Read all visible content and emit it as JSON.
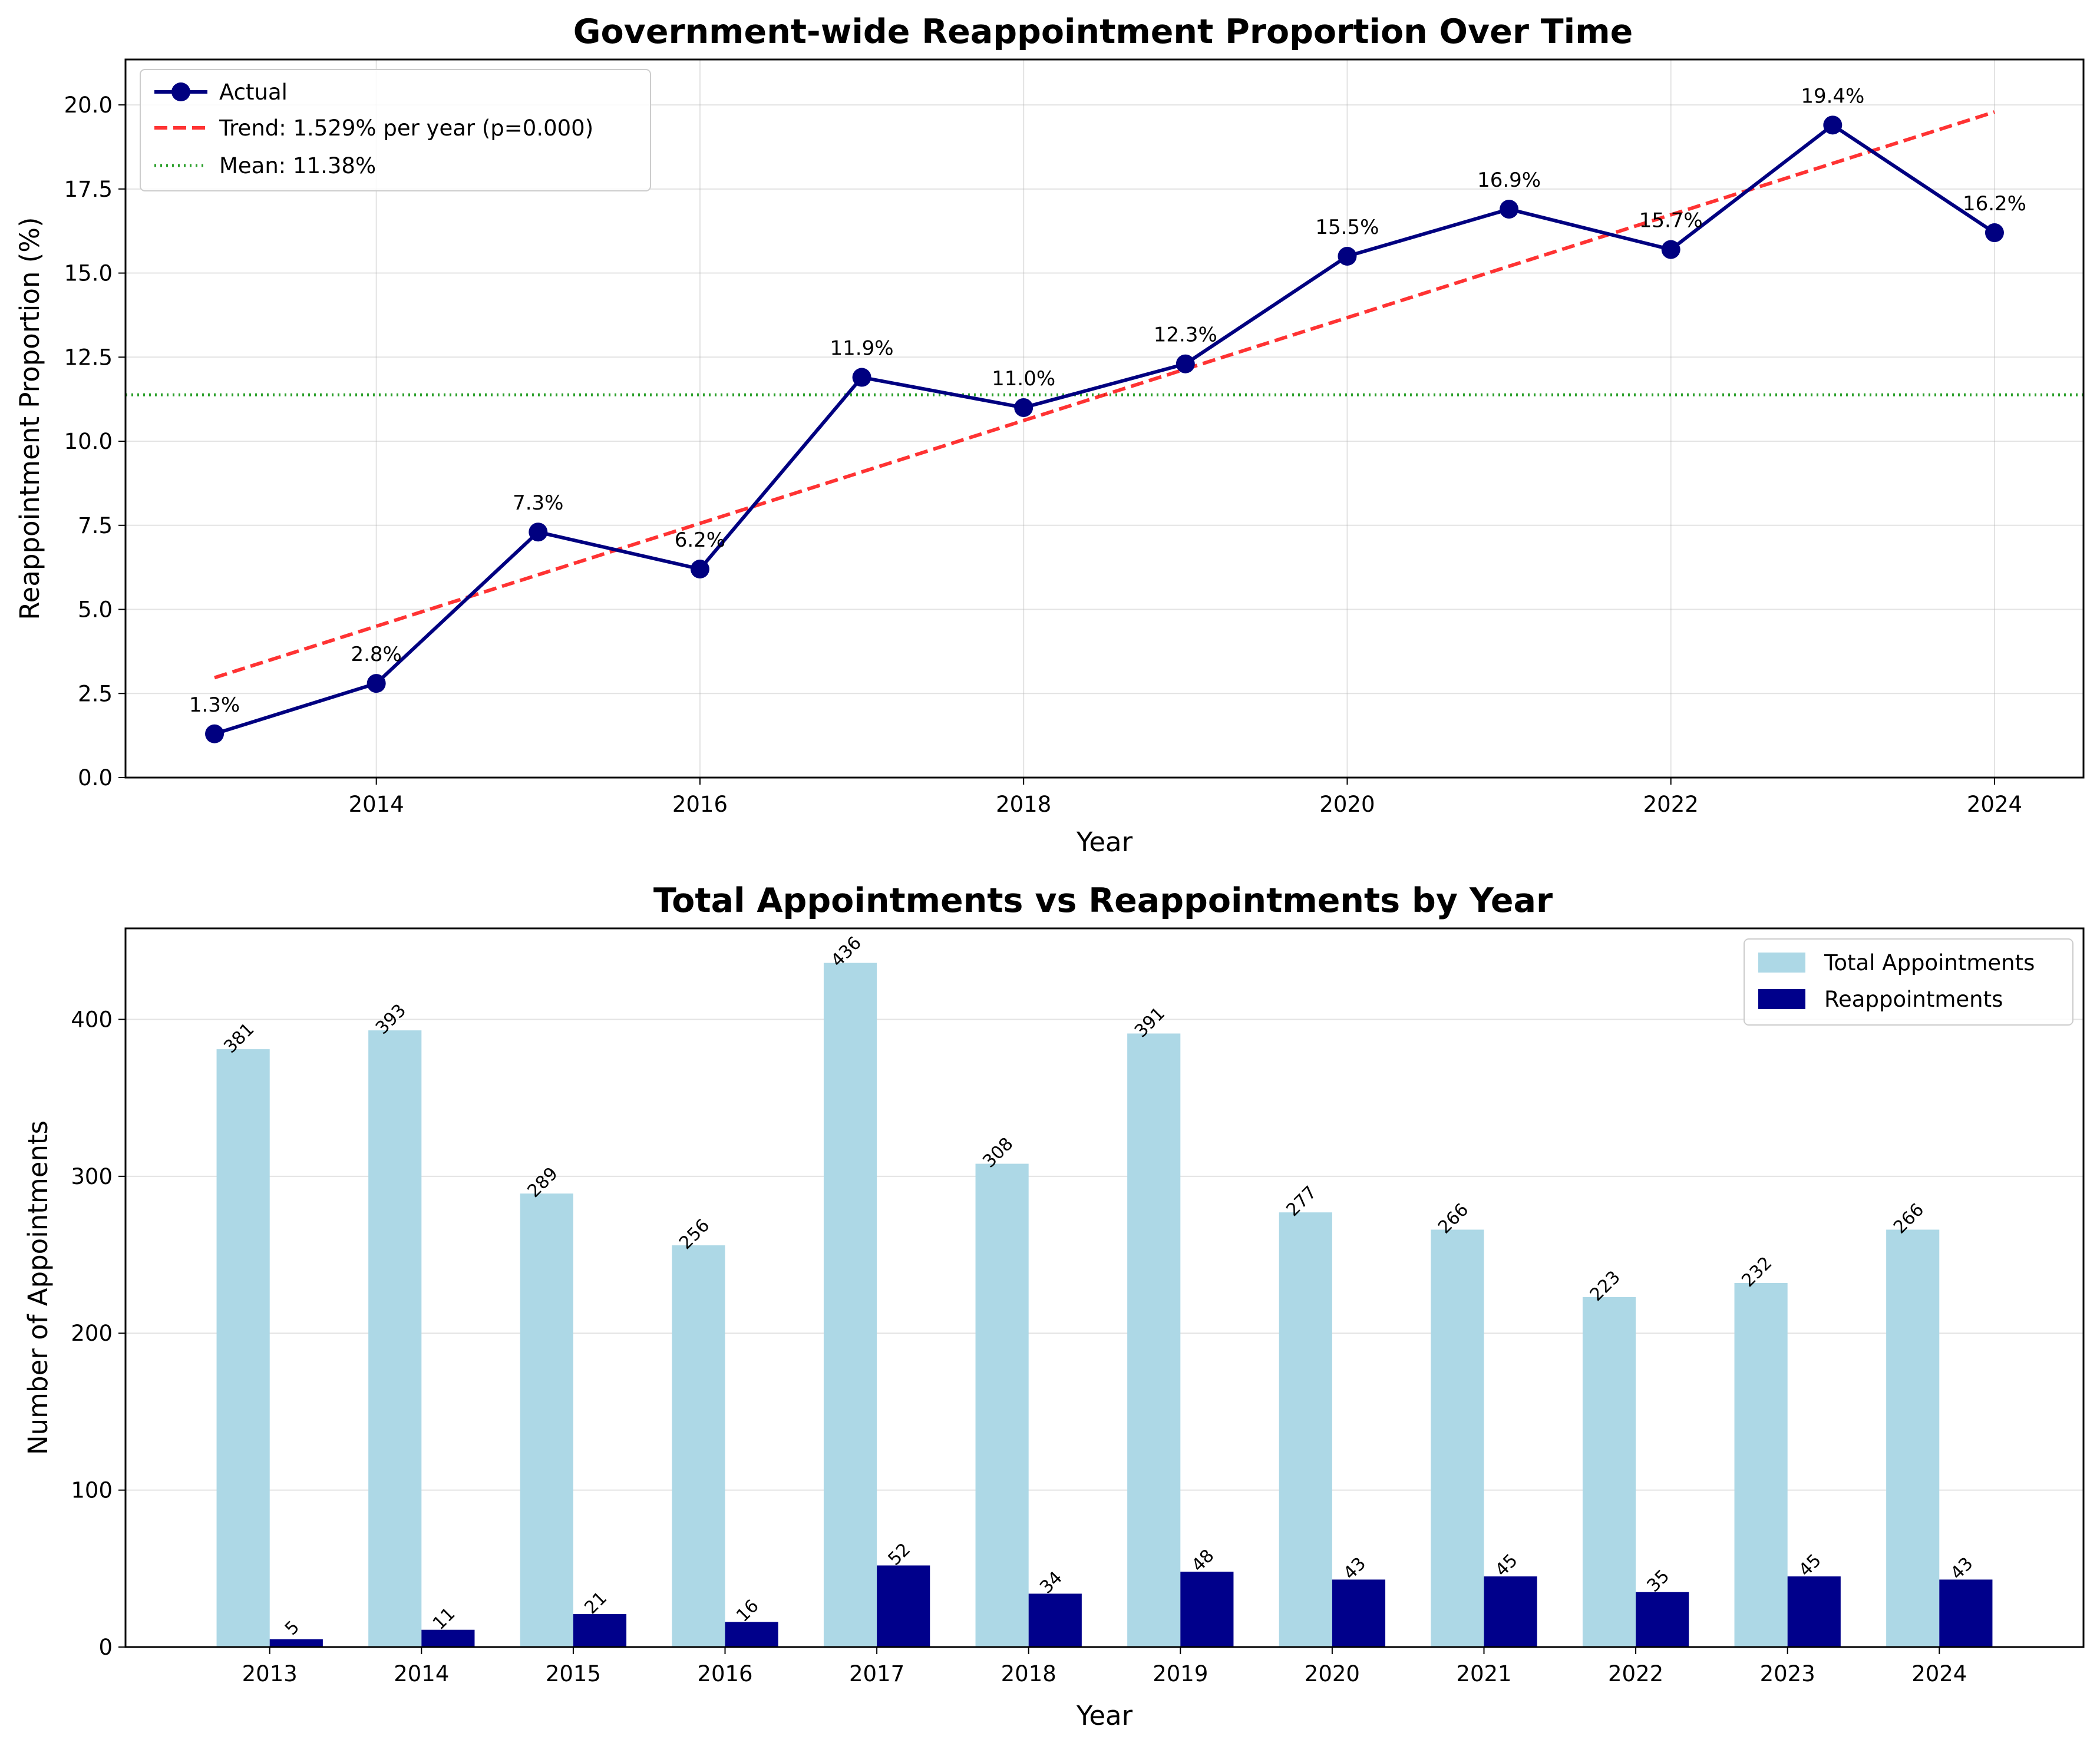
{
  "chart_data": [
    {
      "type": "line",
      "title": "Government-wide Reappointment Proportion Over Time",
      "xlabel": "Year",
      "ylabel": "Reappointment Proportion (%)",
      "xlim": [
        2012.45,
        2024.55
      ],
      "ylim": [
        0,
        21.35
      ],
      "xticks": [
        "2014",
        "2016",
        "2018",
        "2020",
        "2022",
        "2024"
      ],
      "yticks": [
        "0.0",
        "2.5",
        "5.0",
        "7.5",
        "10.0",
        "12.5",
        "15.0",
        "17.5",
        "20.0"
      ],
      "grid": true,
      "legend_position": "upper-left",
      "x": [
        2013,
        2014,
        2015,
        2016,
        2017,
        2018,
        2019,
        2020,
        2021,
        2022,
        2023,
        2024
      ],
      "series": [
        {
          "name": "Actual",
          "color": "#000080",
          "values": [
            1.3,
            2.8,
            7.3,
            6.2,
            11.9,
            11.0,
            12.3,
            15.5,
            16.9,
            15.7,
            19.4,
            16.2
          ],
          "labels": [
            "1.3%",
            "2.8%",
            "7.3%",
            "6.2%",
            "11.9%",
            "11.0%",
            "12.3%",
            "15.5%",
            "16.9%",
            "15.7%",
            "19.4%",
            "16.2%"
          ]
        },
        {
          "name": "Trend: 1.529% per year (p=0.000)",
          "color": "#ff0000",
          "line": [
            [
              2013,
              2.97
            ],
            [
              2024,
              19.79
            ]
          ]
        },
        {
          "name": "Mean: 11.38%",
          "color": "#2ca02c",
          "value": 11.38
        }
      ]
    },
    {
      "type": "bar",
      "title": "Total Appointments vs Reappointments by Year",
      "xlabel": "Year",
      "ylabel": "Number of Appointments",
      "ylim": [
        0,
        458
      ],
      "yticks": [
        "0",
        "100",
        "200",
        "300",
        "400"
      ],
      "grid": true,
      "legend_position": "upper-right",
      "categories": [
        "2013",
        "2014",
        "2015",
        "2016",
        "2017",
        "2018",
        "2019",
        "2020",
        "2021",
        "2022",
        "2023",
        "2024"
      ],
      "series": [
        {
          "name": "Total Appointments",
          "color": "#add8e6",
          "values": [
            381,
            393,
            289,
            256,
            436,
            308,
            391,
            277,
            266,
            223,
            232,
            266
          ]
        },
        {
          "name": "Reappointments",
          "color": "#00008b",
          "values": [
            5,
            11,
            21,
            16,
            52,
            34,
            48,
            43,
            45,
            35,
            45,
            43
          ]
        }
      ]
    }
  ]
}
